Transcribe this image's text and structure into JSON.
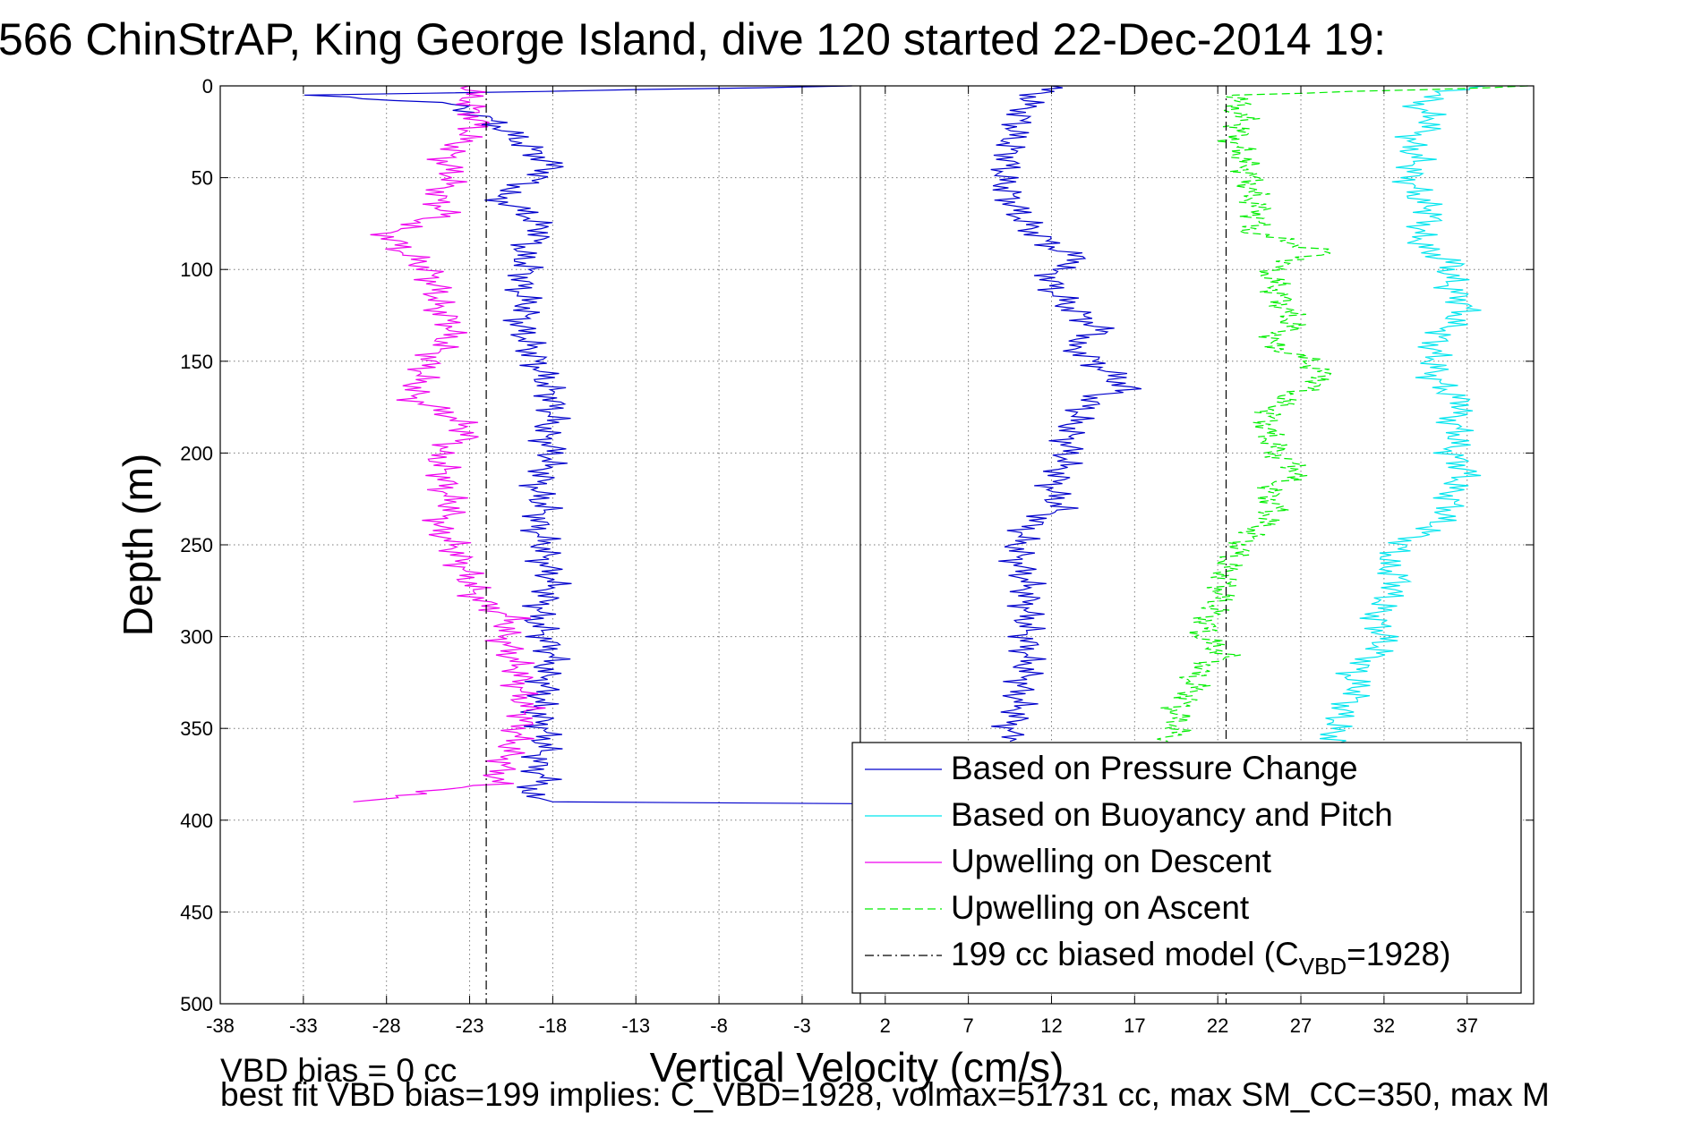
{
  "chart_data": {
    "type": "line",
    "title": "566 ChinStrAP, King George Island, dive 120 started 22-Dec-2014 19:",
    "xlabel": "Vertical Velocity (cm/s)",
    "ylabel": "Depth (m)",
    "xlim": [
      -38,
      41
    ],
    "ylim": [
      0,
      500
    ],
    "y_reversed": true,
    "grid": true,
    "x_ticks": [
      -38,
      -33,
      -28,
      -23,
      -18,
      -13,
      -8,
      -3,
      2,
      7,
      12,
      17,
      22,
      27,
      32,
      37
    ],
    "y_ticks": [
      0,
      50,
      100,
      150,
      200,
      250,
      300,
      350,
      400,
      450,
      500
    ],
    "legend_position": "bottom-right",
    "series": [
      {
        "name": "Based on Pressure Change",
        "color": "#0000cc",
        "style": "solid",
        "segments": [
          {
            "depth": [
              0,
              5,
              10,
              20,
              30,
              40,
              45,
              55,
              60,
              70,
              80,
              90,
              100,
              110,
              120,
              130,
              140,
              150,
              160,
              170,
              180,
              190,
              200,
              210,
              220,
              230,
              240,
              250,
              260,
              270,
              280,
              290,
              300,
              310,
              320,
              330,
              340,
              350,
              360,
              370,
              380,
              385,
              390,
              391
            ],
            "velocity": [
              0,
              -32,
              -24,
              -21.5,
              -20,
              -18.5,
              -18,
              -20,
              -21.5,
              -19.5,
              -18.5,
              -20,
              -19.5,
              -20,
              -19.5,
              -20,
              -19.5,
              -19,
              -18.5,
              -18,
              -18,
              -18.5,
              -18,
              -18.5,
              -19,
              -18.5,
              -19,
              -18.5,
              -18.5,
              -18,
              -18.5,
              -19,
              -18.5,
              -18,
              -18.5,
              -18.5,
              -19,
              -18.5,
              -18.5,
              -19,
              -18.5,
              -20,
              -18,
              0
            ]
          },
          {
            "depth": [
              0,
              5,
              10,
              20,
              30,
              40,
              50,
              60,
              70,
              80,
              90,
              95,
              100,
              110,
              120,
              130,
              135,
              140,
              150,
              160,
              165,
              170,
              180,
              190,
              200,
              210,
              220,
              230,
              240,
              250,
              260,
              270,
              280,
              290,
              300,
              310,
              320,
              330,
              340,
              350,
              357
            ],
            "velocity": [
              12,
              11,
              10.5,
              10,
              9.5,
              9.5,
              9,
              9.5,
              10,
              11,
              12.5,
              14,
              12,
              12,
              13,
              14.5,
              15,
              13,
              14.5,
              16,
              16.5,
              14.5,
              13.5,
              13,
              13,
              12.5,
              12,
              12.5,
              10.5,
              10,
              10,
              10.5,
              10.5,
              10.5,
              10.5,
              10.5,
              10.5,
              10,
              10,
              9.5,
              9.5
            ]
          }
        ]
      },
      {
        "name": "Based on Buoyancy and Pitch",
        "color": "#00e5ee",
        "style": "solid",
        "segments": [
          {
            "depth": [
              0,
              5,
              10,
              20,
              30,
              40,
              50,
              60,
              70,
              80,
              90,
              95,
              100,
              110,
              120,
              130,
              140,
              150,
              160,
              175,
              180,
              190,
              200,
              210,
              220,
              230,
              240,
              250,
              260,
              270,
              280,
              290,
              300,
              310,
              320,
              330,
              340,
              350,
              360
            ],
            "velocity": [
              38,
              35,
              34,
              35,
              33.5,
              34,
              33.5,
              34,
              35,
              34,
              34.5,
              36,
              36,
              36,
              37,
              36,
              35,
              35,
              35,
              37,
              36,
              36.5,
              36,
              37,
              36,
              36,
              35,
              33,
              32,
              33,
              32,
              31.5,
              32,
              31.5,
              30,
              30.5,
              29.5,
              29,
              29
            ]
          }
        ]
      },
      {
        "name": "Upwelling on Descent",
        "color": "#ee00ee",
        "style": "solid",
        "segments": [
          {
            "depth": [
              0,
              10,
              20,
              30,
              40,
              50,
              60,
              70,
              80,
              90,
              100,
              110,
              120,
              130,
              140,
              150,
              160,
              170,
              180,
              190,
              200,
              210,
              220,
              230,
              240,
              250,
              260,
              270,
              280,
              290,
              300,
              310,
              320,
              330,
              340,
              350,
              360,
              370,
              380,
              390
            ],
            "velocity": [
              -23,
              -23,
              -22.5,
              -23.5,
              -24.5,
              -24,
              -25,
              -24.5,
              -28,
              -27,
              -25.5,
              -25,
              -25,
              -24,
              -24.5,
              -25.5,
              -26,
              -26.5,
              -24,
              -23,
              -25,
              -24.5,
              -24.5,
              -24,
              -25,
              -24,
              -23.5,
              -23,
              -22.5,
              -20.5,
              -21,
              -20.5,
              -20,
              -20,
              -19.5,
              -20,
              -20.5,
              -21,
              -21.5,
              -30
            ]
          }
        ]
      },
      {
        "name": "Upwelling on Ascent",
        "color": "#00ee00",
        "style": "dashed",
        "segments": [
          {
            "depth": [
              0,
              5,
              10,
              20,
              30,
              40,
              50,
              60,
              70,
              80,
              90,
              100,
              110,
              120,
              130,
              140,
              150,
              160,
              170,
              180,
              190,
              200,
              210,
              220,
              230,
              240,
              250,
              260,
              270,
              280,
              290,
              300,
              310,
              320,
              330,
              340,
              350,
              357
            ],
            "velocity": [
              41,
              23.5,
              23,
              23.5,
              23,
              23.5,
              24,
              24,
              24.5,
              24,
              28.5,
              25,
              25.5,
              26,
              26.5,
              25,
              27.5,
              28.5,
              26,
              25,
              25,
              25.5,
              27,
              25,
              25.5,
              24.5,
              23.5,
              22.5,
              22.5,
              22,
              21.5,
              21,
              22.5,
              20.5,
              20.5,
              19.5,
              19.5,
              19
            ]
          }
        ]
      },
      {
        "name": "199 cc biased model (C",
        "name_sub": "VBD",
        "name_suffix": "=1928)",
        "color": "#000000",
        "style": "dashdot",
        "segments": [
          {
            "depth": [
              0,
              500
            ],
            "velocity": [
              -22,
              -22
            ]
          },
          {
            "depth": [
              0,
              500
            ],
            "velocity": [
              22.5,
              22.5
            ]
          }
        ]
      }
    ],
    "vertical_lines": [
      0.5
    ]
  },
  "annotations": {
    "line1": "VBD bias = 0 cc",
    "line2": "best fit VBD bias=199 implies: C_VBD=1928, volmax=51731 cc, max SM_CC=350, max M"
  }
}
